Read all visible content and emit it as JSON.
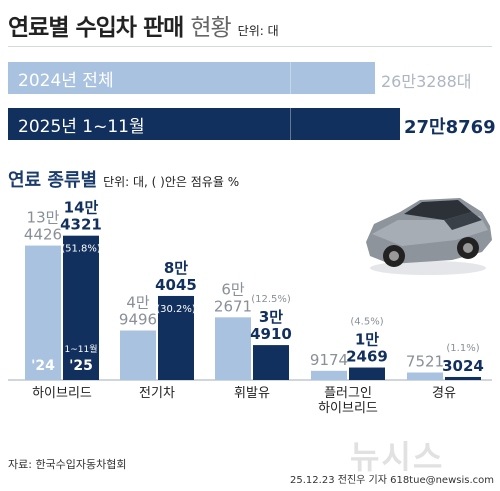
{
  "title": {
    "main": "연료별 수입차 판매",
    "light": "현황",
    "unit": "단위: 대"
  },
  "totals": [
    {
      "label": "2024년 전체",
      "value": "26만3288대",
      "number": 263288,
      "color": "#a9c2e0",
      "value_color": "#aeb6c2"
    },
    {
      "label": "2025년 1~11월",
      "value": "27만8769",
      "number": 278769,
      "color": "#12305e",
      "value_color": "#12305e"
    }
  ],
  "subtitle": {
    "text": "연료 종류별",
    "unit": "단위: 대, ( )안은 점유율 %"
  },
  "colors": {
    "light": "#a9c2e0",
    "dark": "#12305e",
    "axis": "#cfd6de"
  },
  "chart_data": {
    "type": "bar",
    "categories": [
      "하이브리드",
      "전기차",
      "휘발유",
      "플러그인 하이브리드",
      "경유"
    ],
    "series": [
      {
        "name": "'24",
        "values": [
          134426,
          49496,
          62671,
          9174,
          7521
        ]
      },
      {
        "name": "'25",
        "values": [
          144321,
          84045,
          34910,
          12469,
          3024
        ]
      }
    ],
    "value_labels": {
      "light": [
        [
          "13만",
          "4426"
        ],
        [
          "4만",
          "9496"
        ],
        [
          "6만",
          "2671"
        ],
        [
          "9174"
        ],
        [
          "7521"
        ]
      ],
      "dark": [
        [
          "14만",
          "4321"
        ],
        [
          "8만",
          "4045"
        ],
        [
          "3만",
          "4910"
        ],
        [
          "1만",
          "2469"
        ],
        [
          "3024"
        ]
      ]
    },
    "shares": [
      "(51.8%)",
      "(30.2%)",
      "(12.5%)",
      "(4.5%)",
      "(1.1%)"
    ],
    "period_note": "1~11월",
    "ylim": [
      0,
      150000
    ]
  },
  "source": "자료: 한국수입자동차협회",
  "credit": "25.12.23 전진우 기자 618tue@newsis.com",
  "watermark": "뉴시스"
}
